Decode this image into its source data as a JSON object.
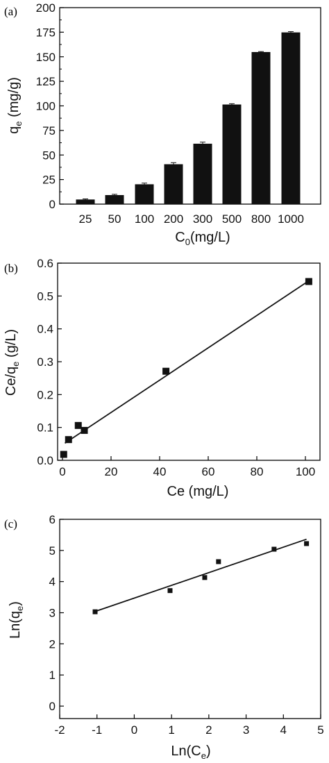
{
  "chart_data": [
    {
      "id": "a",
      "panel_label": "(a)",
      "type": "bar",
      "xlabel_main": "C",
      "xlabel_sub": "0",
      "xlabel_unit": "(mg/L)",
      "ylabel_main": "q",
      "ylabel_sub": "e",
      "ylabel_unit": " (mg/g)",
      "categories": [
        "25",
        "50",
        "100",
        "200",
        "300",
        "500",
        "800",
        "1000"
      ],
      "values": [
        4.7,
        9.2,
        20.2,
        40.6,
        61.5,
        101.4,
        154.8,
        174.8
      ],
      "errors": [
        0.6,
        0.8,
        1.2,
        1.6,
        1.6,
        0.8,
        0.5,
        0.8
      ],
      "ylim": [
        0,
        200
      ],
      "yticks": [
        "0",
        "25",
        "50",
        "75",
        "100",
        "125",
        "150",
        "175",
        "200"
      ],
      "grid": false
    },
    {
      "id": "b",
      "panel_label": "(b)",
      "type": "scatter",
      "xlabel_main": "Ce (mg/L)",
      "ylabel_main": "Ce/q",
      "ylabel_sub": "e",
      "ylabel_unit": " (g/L)",
      "xlim": [
        -2,
        106
      ],
      "ylim": [
        0,
        0.6
      ],
      "xticks": [
        "0",
        "20",
        "40",
        "60",
        "80",
        "100"
      ],
      "yticks": [
        "0.0",
        "0.1",
        "0.2",
        "0.3",
        "0.4",
        "0.5",
        "0.6"
      ],
      "points": [
        {
          "x": 0.5,
          "y": 0.018
        },
        {
          "x": 2.5,
          "y": 0.063
        },
        {
          "x": 6.5,
          "y": 0.106
        },
        {
          "x": 9.0,
          "y": 0.091
        },
        {
          "x": 42.6,
          "y": 0.271
        },
        {
          "x": 101.4,
          "y": 0.544
        }
      ],
      "fit_line": [
        {
          "x": 1,
          "y": 0.052
        },
        {
          "x": 101.4,
          "y": 0.546
        }
      ],
      "grid": false
    },
    {
      "id": "c",
      "panel_label": "(c)",
      "type": "scatter",
      "xlabel_main": "Ln(C",
      "xlabel_sub": "e",
      "xlabel_unit": ")",
      "ylabel_main": "Ln(q",
      "ylabel_sub": "e",
      "ylabel_unit": ")",
      "xlim": [
        -2,
        5
      ],
      "ylim": [
        -0.4,
        6
      ],
      "xticks": [
        "-2",
        "-1",
        "0",
        "1",
        "2",
        "3",
        "4",
        "5"
      ],
      "yticks": [
        "0",
        "1",
        "2",
        "3",
        "4",
        "5",
        "6"
      ],
      "points": [
        {
          "x": -1.05,
          "y": 3.03
        },
        {
          "x": 0.96,
          "y": 3.71
        },
        {
          "x": 1.89,
          "y": 4.13
        },
        {
          "x": 2.26,
          "y": 4.64
        },
        {
          "x": 3.75,
          "y": 5.04
        },
        {
          "x": 4.62,
          "y": 5.22
        }
      ],
      "fit_line": [
        {
          "x": -1.05,
          "y": 3.04
        },
        {
          "x": 4.62,
          "y": 5.36
        }
      ],
      "grid": false
    }
  ]
}
